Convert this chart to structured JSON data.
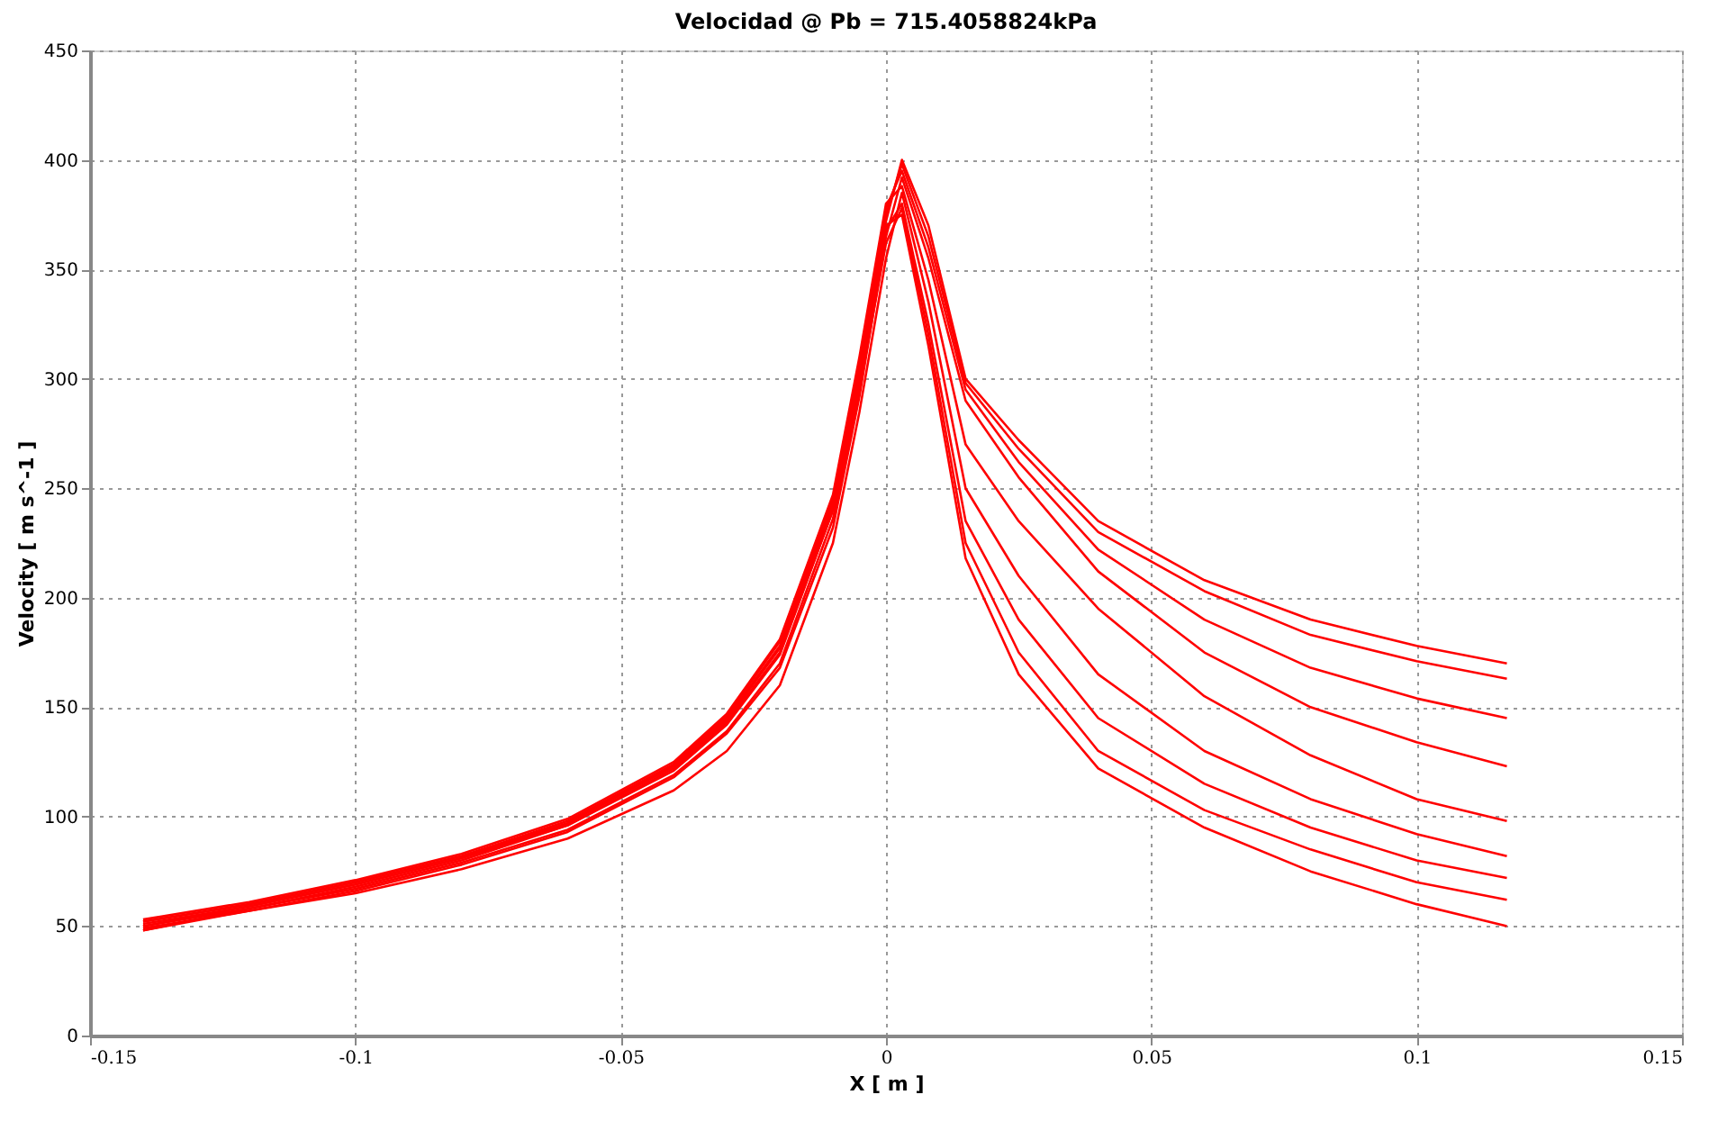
{
  "chart_data": {
    "type": "line",
    "title": "Velocidad @ Pb = 715.4058824kPa",
    "xlabel": "X [ m ]",
    "ylabel": "Velocity [ m s^-1 ]",
    "x": [
      -0.14,
      -0.12,
      -0.1,
      -0.08,
      -0.06,
      -0.04,
      -0.03,
      -0.02,
      -0.01,
      -0.005,
      0,
      0.003,
      0.008,
      0.015,
      0.025,
      0.04,
      0.06,
      0.08,
      0.1,
      0.117
    ],
    "series": [
      {
        "color": "#ff0000",
        "values": [
          48,
          58,
          68,
          80,
          96,
          122,
          143,
          175,
          240,
          300,
          372,
          400,
          370,
          300,
          272,
          235,
          208,
          190,
          178,
          170
        ]
      },
      {
        "color": "#ff0000",
        "values": [
          50,
          59,
          69,
          81,
          97,
          123,
          145,
          178,
          243,
          305,
          375,
          398,
          365,
          298,
          268,
          230,
          203,
          183,
          171,
          163
        ]
      },
      {
        "color": "#ff0000",
        "values": [
          52,
          60,
          70,
          82,
          98,
          124,
          146,
          180,
          245,
          308,
          378,
          395,
          360,
          295,
          262,
          222,
          190,
          168,
          154,
          145
        ]
      },
      {
        "color": "#ff0000",
        "values": [
          48,
          57,
          66,
          78,
          93,
          118,
          138,
          168,
          232,
          292,
          365,
          392,
          355,
          290,
          255,
          212,
          175,
          150,
          134,
          123
        ]
      },
      {
        "color": "#ff0000",
        "values": [
          53,
          61,
          71,
          83,
          99,
          125,
          147,
          181,
          247,
          310,
          380,
          388,
          345,
          270,
          235,
          195,
          155,
          128,
          108,
          98
        ]
      },
      {
        "color": "#ff0000",
        "values": [
          49,
          57,
          65,
          76,
          90,
          112,
          130,
          160,
          225,
          285,
          355,
          385,
          335,
          250,
          210,
          165,
          130,
          108,
          92,
          82
        ]
      },
      {
        "color": "#ff0000",
        "values": [
          51,
          59,
          69,
          81,
          96,
          121,
          142,
          174,
          240,
          298,
          368,
          380,
          325,
          235,
          190,
          145,
          115,
          95,
          80,
          72
        ]
      },
      {
        "color": "#ff0000",
        "values": [
          50,
          58,
          67,
          79,
          94,
          119,
          139,
          170,
          236,
          295,
          362,
          378,
          320,
          225,
          175,
          130,
          103,
          85,
          70,
          62
        ]
      },
      {
        "color": "#ff0000",
        "values": [
          52,
          60,
          70,
          82,
          97,
          123,
          144,
          177,
          242,
          302,
          370,
          375,
          315,
          218,
          165,
          122,
          95,
          75,
          60,
          50
        ]
      }
    ],
    "xlim": [
      -0.15,
      0.15
    ],
    "xticks": [
      -0.15,
      -0.1,
      -0.05,
      0,
      0.05,
      0.1,
      0.15
    ],
    "ylim": [
      0,
      450
    ],
    "yticks": [
      0,
      50,
      100,
      150,
      200,
      250,
      300,
      350,
      400,
      450
    ],
    "grid": true,
    "line_style": "solid",
    "marker": "none"
  }
}
